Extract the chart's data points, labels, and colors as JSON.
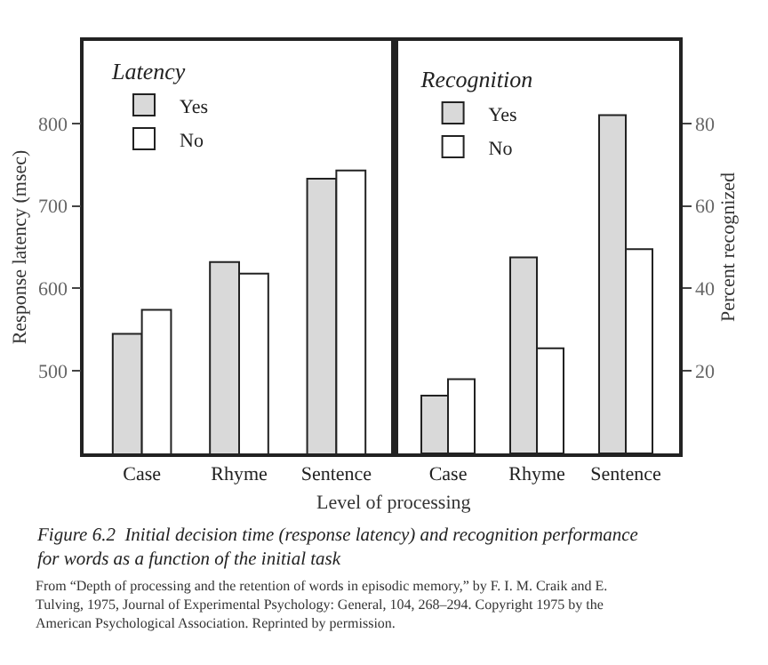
{
  "chart_data": [
    {
      "type": "bar",
      "title": "Figure 6.2  Initial decision time (response latency) and recognition performance for words as a function of the initial task",
      "xlabel": "Level of processing",
      "ylabel": "Response latency (msec)",
      "legend_title": "Latency",
      "legend": "top left",
      "categories": [
        "Case",
        "Rhyme",
        "Sentence"
      ],
      "series": [
        {
          "name": "Yes",
          "color": "#d9d9d9",
          "values": [
            545,
            632,
            733
          ]
        },
        {
          "name": "No",
          "color": "#ffffff",
          "values": [
            574,
            618,
            743
          ]
        }
      ],
      "ylim": [
        400,
        900
      ],
      "yticks": [
        500,
        600,
        700,
        800
      ],
      "grid": false,
      "annotations": [
        "From “Depth of processing and the retention of words in episodic memory,” by F. I. M. Craik and E. Tulving, 1975, Journal of Experimental Psychology: General, 104, 268–294. Copyright 1975 by the American Psychological Association. Reprinted by permission."
      ]
    },
    {
      "type": "bar",
      "ylabel": "Percent recognized",
      "legend_title": "Recognition",
      "legend": "top left",
      "categories": [
        "Case",
        "Rhyme",
        "Sentence"
      ],
      "series": [
        {
          "name": "Yes",
          "color": "#d9d9d9",
          "values": [
            14,
            47.5,
            82
          ]
        },
        {
          "name": "No",
          "color": "#ffffff",
          "values": [
            18,
            25.5,
            49.5
          ]
        }
      ],
      "ylim": [
        0,
        100
      ],
      "yticks": [
        20,
        40,
        60,
        80
      ],
      "grid": false
    }
  ]
}
